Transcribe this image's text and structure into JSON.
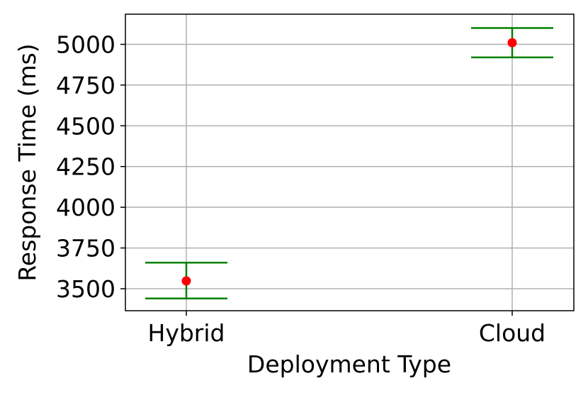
{
  "chart_data": {
    "type": "scatter",
    "title": "",
    "xlabel": "Deployment Type",
    "ylabel": "Response Time (ms)",
    "categories": [
      "Hybrid",
      "Cloud"
    ],
    "series": [
      {
        "values": [
          3548,
          5010
        ],
        "error_low": [
          3440,
          4920
        ],
        "error_high": [
          3660,
          5100
        ]
      }
    ],
    "yticks": [
      3500,
      3750,
      4000,
      4250,
      4500,
      4750,
      5000
    ],
    "ytick_labels": [
      "3500",
      "3750",
      "4000",
      "4250",
      "4500",
      "4750",
      "5000"
    ],
    "ylim": [
      3365,
      5185
    ],
    "grid": true,
    "colors": {
      "point": "#ff0000",
      "errorbar": "#008000",
      "grid": "#b0b0b0"
    }
  }
}
